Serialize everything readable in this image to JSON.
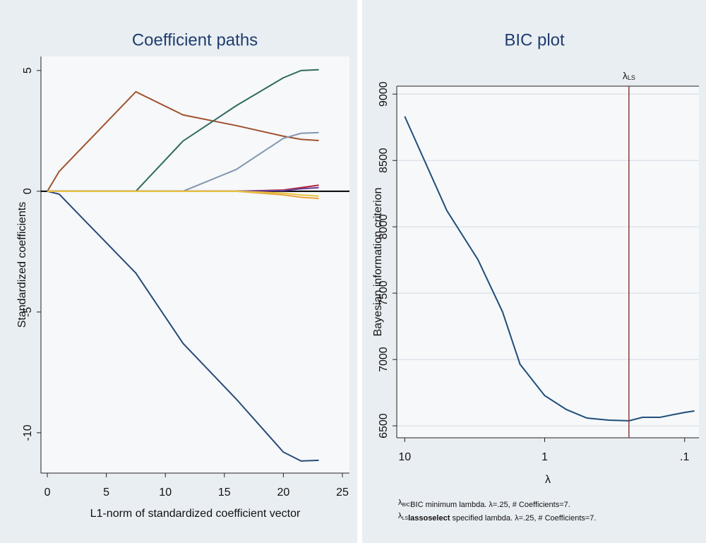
{
  "chart_data": [
    {
      "type": "line",
      "title": "Coefficient paths",
      "x_label": "L1-norm of standardized coefficient vector",
      "y_label": "Standardized coefficients",
      "x": [
        0,
        1,
        7.5,
        11.5,
        16,
        20,
        21.5,
        23
      ],
      "series": [
        {
          "color": "#a0522d",
          "values": [
            0,
            0.82,
            4.12,
            3.16,
            2.72,
            2.28,
            2.15,
            2.1
          ]
        },
        {
          "color": "#2e6b5e",
          "values": [
            0,
            0,
            0,
            2.08,
            3.54,
            4.7,
            5.0,
            5.03
          ]
        },
        {
          "color": "#8497b0",
          "values": [
            0,
            0,
            0,
            0,
            0.9,
            2.19,
            2.4,
            2.43
          ]
        },
        {
          "color": "#2a4a78",
          "values": [
            0,
            -0.12,
            -3.39,
            -6.3,
            -8.6,
            -10.8,
            -11.17,
            -11.14
          ]
        },
        {
          "color": "#b22234",
          "values": [
            0,
            0,
            0,
            0,
            0,
            0.05,
            0.15,
            0.25
          ]
        },
        {
          "color": "#6a3d9a",
          "values": [
            0,
            0,
            0,
            0,
            0,
            0.03,
            0.1,
            0.15
          ]
        },
        {
          "color": "#e8a33d",
          "values": [
            0,
            0,
            0,
            0,
            0,
            -0.15,
            -0.25,
            -0.3
          ]
        },
        {
          "color": "#e8c53d",
          "values": [
            0,
            0,
            0,
            0,
            0,
            -0.08,
            -0.15,
            -0.2
          ]
        }
      ],
      "xlim": [
        -0.54,
        25.6
      ],
      "xticks": [
        0,
        5,
        10,
        15,
        20,
        25
      ],
      "ylim": [
        -11.67,
        5.58
      ],
      "yticks": [
        -10,
        -5,
        0,
        5
      ],
      "grid": false,
      "zero_line": true
    },
    {
      "type": "line",
      "title": "BIC plot",
      "x_label": "λ",
      "y_label": "Bayesian information criterion",
      "x": [
        10,
        5,
        3,
        2,
        1.5,
        1,
        0.7,
        0.5,
        0.35,
        0.25,
        0.2,
        0.15,
        0.12,
        0.1,
        0.085
      ],
      "series": [
        {
          "color": "#1f4e79",
          "values": [
            8832,
            8122,
            7753,
            7359,
            6964,
            6728,
            6623,
            6559,
            6543,
            6538,
            6564,
            6564,
            6585,
            6601,
            6612
          ]
        }
      ],
      "xlog": true,
      "xlim": [
        11.4,
        0.079
      ],
      "xticks": [
        10,
        1,
        {
          "value": 0.1,
          "label": ".1"
        }
      ],
      "ylim": [
        6410,
        9060
      ],
      "yticks": [
        6500,
        7000,
        7500,
        8000,
        8500,
        9000
      ],
      "grid": true,
      "frame_top": true,
      "vline": {
        "value": 0.25,
        "symbol": "λ",
        "subscript": "LS",
        "color": "#8b3a3a"
      },
      "notes": [
        {
          "symbol": "λ",
          "subscript": "BIC",
          "text": "BIC minimum lambda. λ=.25, # Coefficients=7."
        },
        {
          "symbol": "λ",
          "subscript": "LS",
          "bold": "lassoselect",
          "text": " specified lambda. λ=.25, # Coefficients=7."
        }
      ]
    }
  ]
}
